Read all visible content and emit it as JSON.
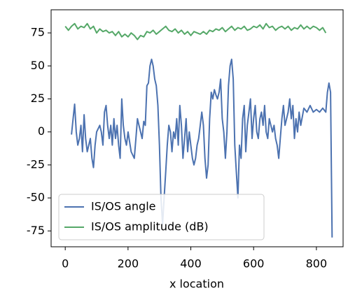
{
  "chart_data": {
    "type": "line",
    "xlabel": "x location",
    "xlim": [
      -45,
      885
    ],
    "ylim": [
      -87,
      92.5
    ],
    "xticks": [
      0,
      200,
      400,
      600,
      800
    ],
    "yticks": [
      -75,
      -50,
      -25,
      0,
      25,
      50,
      75
    ],
    "legend": "lower left",
    "series": [
      {
        "name": "IS/OS angle",
        "color": "#4c72b0",
        "x": [
          20,
          25,
          30,
          35,
          40,
          45,
          50,
          55,
          60,
          65,
          70,
          75,
          80,
          85,
          90,
          95,
          100,
          110,
          115,
          120,
          125,
          130,
          135,
          140,
          145,
          150,
          155,
          160,
          165,
          170,
          175,
          180,
          185,
          190,
          195,
          200,
          210,
          220,
          225,
          230,
          235,
          240,
          245,
          250,
          255,
          260,
          265,
          270,
          275,
          280,
          285,
          290,
          295,
          300,
          305,
          310,
          315,
          320,
          325,
          330,
          335,
          340,
          345,
          350,
          355,
          360,
          365,
          370,
          375,
          380,
          385,
          390,
          395,
          400,
          405,
          410,
          415,
          420,
          425,
          430,
          435,
          440,
          445,
          450,
          455,
          460,
          465,
          470,
          475,
          480,
          485,
          490,
          495,
          500,
          505,
          510,
          515,
          520,
          525,
          530,
          535,
          540,
          545,
          550,
          555,
          560,
          565,
          570,
          575,
          580,
          585,
          590,
          595,
          600,
          605,
          610,
          615,
          620,
          625,
          630,
          635,
          640,
          645,
          650,
          660,
          665,
          670,
          675,
          680,
          685,
          690,
          695,
          700,
          705,
          710,
          715,
          720,
          725,
          730,
          735,
          740,
          745,
          750,
          760,
          770,
          780,
          790,
          800,
          810,
          820,
          830,
          835,
          840,
          845,
          850
        ],
        "values": [
          -2,
          10,
          21,
          0,
          -10,
          -5,
          5,
          -15,
          13,
          -5,
          -15,
          -10,
          -5,
          -20,
          -27,
          -10,
          0,
          5,
          0,
          -10,
          15,
          20,
          5,
          -5,
          5,
          -10,
          10,
          -5,
          5,
          -10,
          -20,
          25,
          5,
          -5,
          -10,
          0,
          -15,
          -20,
          -5,
          10,
          5,
          0,
          -5,
          8,
          5,
          35,
          37,
          50,
          55,
          50,
          40,
          35,
          20,
          -10,
          -50,
          -70,
          -50,
          -30,
          -10,
          5,
          0,
          -15,
          0,
          -5,
          10,
          -10,
          20,
          5,
          -20,
          -5,
          10,
          -15,
          0,
          -10,
          -20,
          -25,
          -20,
          -10,
          -5,
          5,
          15,
          5,
          -20,
          -35,
          -25,
          10,
          30,
          25,
          32,
          28,
          25,
          30,
          40,
          10,
          0,
          -20,
          0,
          35,
          50,
          55,
          40,
          -10,
          -30,
          -50,
          -10,
          -20,
          10,
          20,
          -15,
          5,
          15,
          25,
          -5,
          10,
          20,
          0,
          -5,
          10,
          15,
          5,
          20,
          0,
          -5,
          10,
          0,
          5,
          -5,
          -10,
          -20,
          -5,
          10,
          20,
          5,
          10,
          15,
          25,
          10,
          20,
          -5,
          10,
          0,
          15,
          5,
          18,
          15,
          20,
          15,
          17,
          15,
          18,
          15,
          30,
          37,
          30,
          -80
        ]
      },
      {
        "name": "IS/OS amplitude (dB)",
        "color": "#55a868",
        "x": [
          0,
          10,
          20,
          30,
          40,
          50,
          60,
          70,
          80,
          90,
          100,
          110,
          120,
          130,
          140,
          150,
          160,
          170,
          180,
          190,
          200,
          210,
          220,
          230,
          240,
          250,
          260,
          270,
          280,
          290,
          300,
          310,
          320,
          330,
          340,
          350,
          360,
          370,
          380,
          390,
          400,
          410,
          420,
          430,
          440,
          450,
          460,
          470,
          480,
          490,
          500,
          510,
          520,
          530,
          540,
          550,
          560,
          570,
          580,
          590,
          600,
          610,
          620,
          630,
          640,
          650,
          660,
          670,
          680,
          690,
          700,
          710,
          720,
          730,
          740,
          750,
          760,
          770,
          780,
          790,
          800,
          810,
          820,
          830
        ],
        "values": [
          80,
          77,
          80,
          82,
          78,
          80,
          79,
          82,
          78,
          80,
          75,
          78,
          76,
          77,
          75,
          76,
          73,
          76,
          72,
          74,
          72,
          75,
          73,
          70,
          73,
          72,
          76,
          75,
          77,
          74,
          76,
          78,
          80,
          77,
          76,
          78,
          75,
          77,
          74,
          76,
          73,
          76,
          75,
          74,
          76,
          74,
          77,
          76,
          78,
          77,
          79,
          76,
          78,
          80,
          77,
          79,
          78,
          80,
          77,
          78,
          80,
          79,
          81,
          78,
          82,
          79,
          80,
          77,
          79,
          80,
          78,
          80,
          77,
          79,
          78,
          81,
          78,
          80,
          78,
          80,
          79,
          77,
          79,
          75
        ]
      }
    ]
  }
}
